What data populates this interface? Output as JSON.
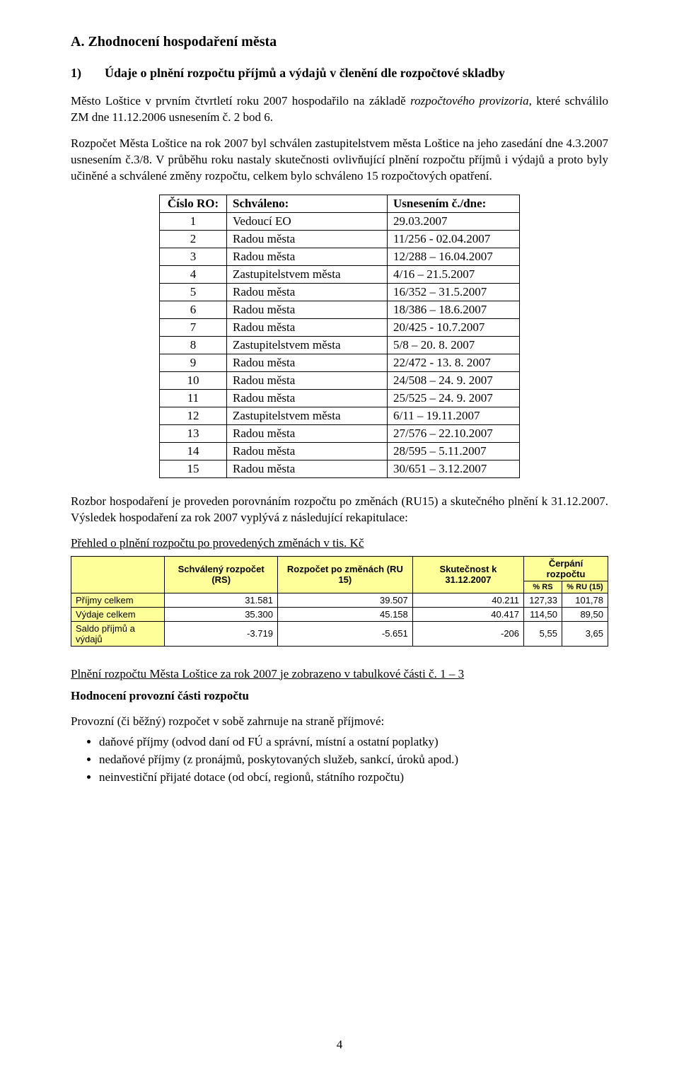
{
  "colors": {
    "page_bg": "#ffffff",
    "text": "#000000",
    "table_header_bg": "#ffff99",
    "border": "#000000"
  },
  "typography": {
    "body_family": "Times New Roman",
    "body_size_pt": 12,
    "table_summary_family": "Arial",
    "table_summary_size_pt": 10
  },
  "title": "A. Zhodnocení hospodaření města",
  "section1": {
    "num": "1)",
    "heading": "Údaje o plnění rozpočtu příjmů a výdajů v členění dle rozpočtové skladby"
  },
  "para1_pre": "Město Loštice v prvním čtvrtletí roku 2007  hospodařilo na základě ",
  "para1_italic": "rozpočtového provizoria",
  "para1_post": ", které schválilo ZM dne 11.12.2006 usnesením č. 2 bod 6.",
  "para2": "Rozpočet Města Loštice na rok 2007 byl schválen zastupitelstvem města Loštice na jeho zasedání dne 4.3.2007 usnesením č.3/8. V průběhu roku nastaly skutečnosti ovlivňující plnění rozpočtu příjmů i výdajů a proto byly učiněné a schválené změny rozpočtu, celkem bylo schváleno 15 rozpočtových opatření.",
  "ro_table": {
    "type": "table",
    "headers": [
      "Číslo RO:",
      "Schváleno:",
      "Usnesením č./dne:"
    ],
    "col_align": [
      "center",
      "left",
      "left"
    ],
    "rows": [
      [
        "1",
        "Vedoucí EO",
        "29.03.2007"
      ],
      [
        "2",
        "Radou města",
        "11/256 - 02.04.2007"
      ],
      [
        "3",
        "Radou města",
        "12/288 – 16.04.2007"
      ],
      [
        "4",
        "Zastupitelstvem  města",
        "4/16 – 21.5.2007"
      ],
      [
        "5",
        "Radou města",
        "16/352 – 31.5.2007"
      ],
      [
        "6",
        "Radou města",
        "18/386 – 18.6.2007"
      ],
      [
        "7",
        "Radou města",
        "20/425 - 10.7.2007"
      ],
      [
        "8",
        "Zastupitelstvem města",
        "5/8 – 20. 8. 2007"
      ],
      [
        "9",
        "Radou města",
        "22/472 - 13. 8. 2007"
      ],
      [
        "10",
        "Radou města",
        "24/508 – 24. 9. 2007"
      ],
      [
        "11",
        "Radou města",
        "25/525 – 24. 9. 2007"
      ],
      [
        "12",
        "Zastupitelstvem města",
        "6/11 – 19.11.2007"
      ],
      [
        "13",
        "Radou města",
        "27/576 – 22.10.2007"
      ],
      [
        "14",
        "Radou města",
        "28/595 – 5.11.2007"
      ],
      [
        "15",
        "Radou města",
        "30/651 – 3.12.2007"
      ]
    ]
  },
  "para3": "Rozbor hospodaření je proveden porovnáním rozpočtu po změnách (RU15) a skutečného plnění k 31.12.2007. Výsledek hospodaření za rok 2007 vyplývá z následující rekapitulace:",
  "summary_caption": "Přehled o plnění rozpočtu  po provedených změnách  v tis. Kč",
  "summary_table": {
    "type": "table",
    "header_row1": [
      "",
      "Schválený rozpočet (RS)",
      "Rozpočet po změnách (RU 15)",
      "Skutečnost k 31.12.2007",
      "Čerpání rozpočtu"
    ],
    "header_row2": [
      "% RS",
      "% RU (15)"
    ],
    "header_bg": "#ffff99",
    "columns_count": 6,
    "col_align": [
      "left",
      "right",
      "right",
      "right",
      "right",
      "right"
    ],
    "rows": [
      {
        "label": "Příjmy celkem",
        "rs": "31.581",
        "ru15": "39.507",
        "sk": "40.211",
        "pct_rs": "127,33",
        "pct_ru": "101,78"
      },
      {
        "label": "Výdaje celkem",
        "rs": "35.300",
        "ru15": "45.158",
        "sk": "40.417",
        "pct_rs": "114,50",
        "pct_ru": "89,50"
      },
      {
        "label": "Saldo příjmů a výdajů",
        "rs": "-3.719",
        "ru15": "-5.651",
        "sk": "-206",
        "pct_rs": "5,55",
        "pct_ru": "3,65"
      }
    ]
  },
  "para4": "Plnění rozpočtu Města Loštice za rok 2007 je zobrazeno v tabulkové části  č. 1 – 3",
  "heading2": "Hodnocení provozní části rozpočtu",
  "para5": "Provozní (či běžný) rozpočet v sobě zahrnuje na straně příjmové:",
  "bullets": [
    "daňové příjmy (odvod daní od FÚ a správní, místní a ostatní poplatky)",
    "nedaňové příjmy (z pronájmů, poskytovaných služeb, sankcí, úroků apod.)",
    "neinvestiční přijaté dotace (od obcí, regionů, státního rozpočtu)"
  ],
  "page_number": "4"
}
